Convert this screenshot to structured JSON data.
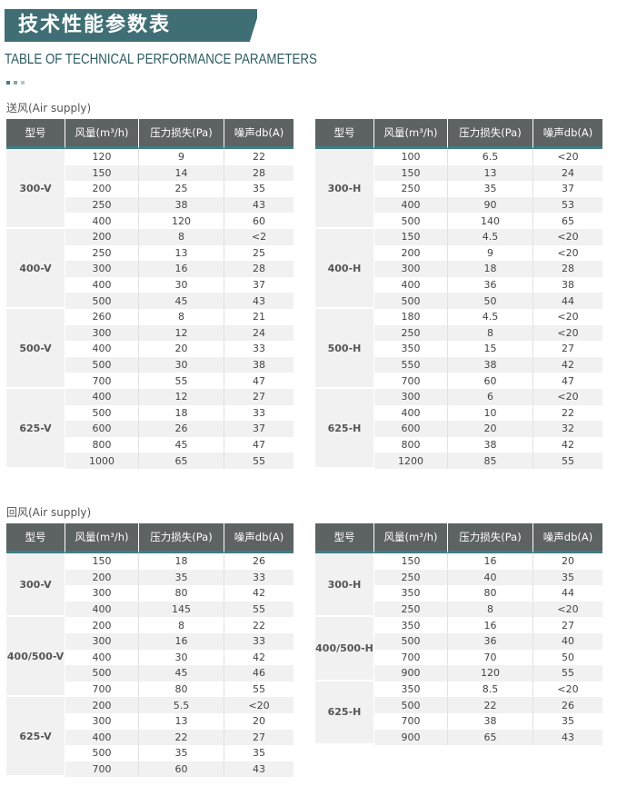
{
  "header": {
    "title": "技术性能参数表",
    "subtitle": "TABLE OF TECHNICAL PERFORMANCE PARAMETERS"
  },
  "sections": [
    {
      "label": "送风(Air supply)",
      "tables": [
        {
          "columns": [
            "型号",
            "风量(m³/h)",
            "压力损失(Pa)",
            "噪声db(A)"
          ],
          "groups": [
            {
              "model": "300-V",
              "rows": [
                [
                  120,
                  9,
                  22
                ],
                [
                  150,
                  14,
                  28
                ],
                [
                  200,
                  25,
                  35
                ],
                [
                  250,
                  38,
                  43
                ],
                [
                  400,
                  120,
                  60
                ]
              ]
            },
            {
              "model": "400-V",
              "rows": [
                [
                  200,
                  8,
                  "<2"
                ],
                [
                  250,
                  13,
                  25
                ],
                [
                  300,
                  16,
                  28
                ],
                [
                  400,
                  30,
                  37
                ],
                [
                  500,
                  45,
                  43
                ]
              ]
            },
            {
              "model": "500-V",
              "rows": [
                [
                  260,
                  8,
                  21
                ],
                [
                  300,
                  12,
                  24
                ],
                [
                  400,
                  20,
                  33
                ],
                [
                  500,
                  30,
                  38
                ],
                [
                  700,
                  55,
                  47
                ]
              ]
            },
            {
              "model": "625-V",
              "rows": [
                [
                  400,
                  12,
                  27
                ],
                [
                  500,
                  18,
                  33
                ],
                [
                  600,
                  26,
                  37
                ],
                [
                  800,
                  45,
                  47
                ],
                [
                  1000,
                  65,
                  55
                ]
              ]
            }
          ]
        },
        {
          "columns": [
            "型号",
            "风量(m³/h)",
            "压力损失(Pa)",
            "噪声db(A)"
          ],
          "groups": [
            {
              "model": "300-H",
              "rows": [
                [
                  100,
                  6.5,
                  "<20"
                ],
                [
                  150,
                  13,
                  24
                ],
                [
                  250,
                  35,
                  37
                ],
                [
                  400,
                  90,
                  53
                ],
                [
                  500,
                  140,
                  65
                ]
              ]
            },
            {
              "model": "400-H",
              "rows": [
                [
                  150,
                  4.5,
                  "<20"
                ],
                [
                  200,
                  9,
                  "<20"
                ],
                [
                  300,
                  18,
                  28
                ],
                [
                  400,
                  36,
                  38
                ],
                [
                  500,
                  50,
                  44
                ]
              ]
            },
            {
              "model": "500-H",
              "rows": [
                [
                  180,
                  4.5,
                  "<20"
                ],
                [
                  250,
                  8,
                  "<20"
                ],
                [
                  350,
                  15,
                  27
                ],
                [
                  550,
                  38,
                  42
                ],
                [
                  700,
                  60,
                  47
                ]
              ]
            },
            {
              "model": "625-H",
              "rows": [
                [
                  300,
                  6,
                  "<20"
                ],
                [
                  400,
                  10,
                  22
                ],
                [
                  600,
                  20,
                  32
                ],
                [
                  800,
                  38,
                  42
                ],
                [
                  1200,
                  85,
                  55
                ]
              ]
            }
          ]
        }
      ]
    },
    {
      "label": "回风(Air supply)",
      "tables": [
        {
          "columns": [
            "型号",
            "风量(m³/h)",
            "压力损失(Pa)",
            "噪声db(A)"
          ],
          "groups": [
            {
              "model": "300-V",
              "rows": [
                [
                  150,
                  18,
                  26
                ],
                [
                  200,
                  35,
                  33
                ],
                [
                  300,
                  80,
                  42
                ],
                [
                  400,
                  145,
                  55
                ]
              ]
            },
            {
              "model": "400/500-V",
              "rows": [
                [
                  200,
                  8,
                  22
                ],
                [
                  300,
                  16,
                  33
                ],
                [
                  400,
                  30,
                  42
                ],
                [
                  500,
                  45,
                  46
                ],
                [
                  700,
                  80,
                  55
                ]
              ]
            },
            {
              "model": "625-V",
              "rows": [
                [
                  200,
                  5.5,
                  "<20"
                ],
                [
                  300,
                  13,
                  20
                ],
                [
                  400,
                  22,
                  27
                ],
                [
                  500,
                  35,
                  35
                ],
                [
                  700,
                  60,
                  43
                ]
              ]
            }
          ]
        },
        {
          "columns": [
            "型号",
            "风量(m³/h)",
            "压力损失(Pa)",
            "噪声db(A)"
          ],
          "groups": [
            {
              "model": "300-H",
              "rows": [
                [
                  150,
                  16,
                  20
                ],
                [
                  250,
                  40,
                  35
                ],
                [
                  350,
                  80,
                  44
                ],
                [
                  250,
                  8,
                  "<20"
                ]
              ]
            },
            {
              "model": "400/500-H",
              "rows": [
                [
                  350,
                  16,
                  27
                ],
                [
                  500,
                  36,
                  40
                ],
                [
                  700,
                  70,
                  50
                ],
                [
                  900,
                  120,
                  55
                ]
              ]
            },
            {
              "model": "625-H",
              "rows": [
                [
                  350,
                  8.5,
                  "<20"
                ],
                [
                  500,
                  22,
                  26
                ],
                [
                  700,
                  38,
                  35
                ],
                [
                  900,
                  65,
                  43
                ]
              ]
            }
          ]
        }
      ]
    }
  ]
}
